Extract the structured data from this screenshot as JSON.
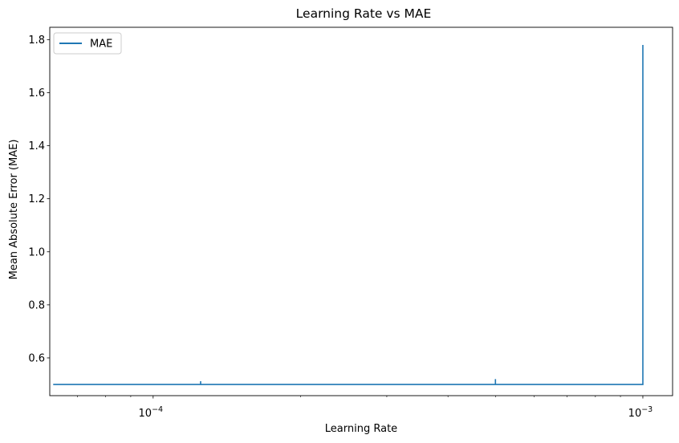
{
  "chart_data": {
    "type": "line",
    "title": "Learning Rate vs MAE",
    "xlabel": "Learning Rate",
    "ylabel": "Mean Absolute Error (MAE)",
    "xscale": "log",
    "xlim": [
      6.15e-05,
      0.00115
    ],
    "ylim": [
      0.4577,
      1.8464
    ],
    "x_major_ticks": [
      {
        "value": 0.0001,
        "base": "10",
        "exp": "−4"
      },
      {
        "value": 0.001,
        "base": "10",
        "exp": "−3"
      }
    ],
    "x_minor_ticks": [
      7e-05,
      8e-05,
      9e-05,
      0.0002,
      0.0003,
      0.0004,
      0.0005,
      0.0006,
      0.0007,
      0.0008,
      0.0009
    ],
    "y_ticks": [
      {
        "value": 0.6,
        "label": "0.6"
      },
      {
        "value": 0.8,
        "label": "0.8"
      },
      {
        "value": 1.0,
        "label": "1.0"
      },
      {
        "value": 1.2,
        "label": "1.2"
      },
      {
        "value": 1.4,
        "label": "1.4"
      },
      {
        "value": 1.6,
        "label": "1.6"
      },
      {
        "value": 1.8,
        "label": "1.8"
      }
    ],
    "grid": false,
    "legend_position": "top-left",
    "series": [
      {
        "name": "MAE",
        "color": "#1f77b4",
        "x": [
          6.25e-05,
          0.000125,
          0.000125,
          0.000125,
          0.0005,
          0.0005,
          0.0005,
          0.001,
          0.001
        ],
        "y": [
          0.5,
          0.5,
          0.512,
          0.5,
          0.5,
          0.52,
          0.5,
          0.5,
          1.78
        ]
      }
    ]
  }
}
